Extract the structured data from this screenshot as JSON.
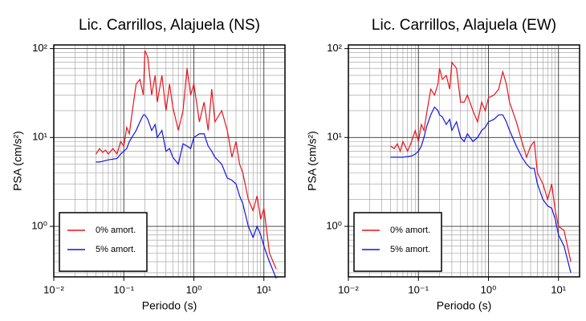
{
  "chart_data": [
    {
      "type": "line",
      "title": "Lic. Carrillos, Alajuela (NS)",
      "x_label": "Periodo (s)",
      "y_label": "PSA (cm/s²)",
      "x": [
        0.04,
        0.045,
        0.05,
        0.055,
        0.06,
        0.07,
        0.08,
        0.09,
        0.1,
        0.11,
        0.12,
        0.13,
        0.15,
        0.17,
        0.19,
        0.2,
        0.22,
        0.25,
        0.28,
        0.3,
        0.35,
        0.4,
        0.45,
        0.5,
        0.6,
        0.7,
        0.8,
        0.9,
        1.0,
        1.2,
        1.4,
        1.6,
        1.8,
        2.0,
        2.5,
        3.0,
        3.5,
        4.0,
        4.5,
        5,
        6,
        7,
        8,
        9,
        10,
        12,
        15
      ],
      "series": [
        {
          "name": "0% amort.",
          "color": "#e8141c",
          "values": [
            6.5,
            7.5,
            6.8,
            7.2,
            6.5,
            7.5,
            6.5,
            9,
            8,
            13,
            11,
            18,
            40,
            45,
            30,
            95,
            80,
            30,
            50,
            25,
            50,
            20,
            40,
            22,
            12,
            20,
            60,
            30,
            40,
            15,
            25,
            12,
            35,
            15,
            20,
            12,
            6,
            9,
            5,
            4,
            2,
            1.5,
            2.2,
            1.2,
            1.6,
            0.5,
            0.33
          ]
        },
        {
          "name": "5% amort.",
          "color": "#1414e0",
          "values": [
            5.3,
            5.3,
            5.4,
            5.5,
            5.6,
            5.7,
            5.8,
            6.5,
            7,
            7.5,
            9,
            10,
            12,
            15,
            18,
            18,
            16,
            12,
            14,
            10,
            12,
            7,
            7.5,
            6,
            5,
            8.5,
            8,
            7.5,
            10,
            11,
            11,
            8,
            7,
            6,
            5,
            3.5,
            3.3,
            3,
            2.2,
            1.8,
            1,
            0.75,
            1.0,
            0.8,
            0.6,
            0.4,
            0.26
          ]
        }
      ],
      "xlim": [
        0.01,
        20
      ],
      "ylim": [
        0.27,
        110
      ],
      "log_x": true,
      "log_y": true,
      "grid": true,
      "minor_grid": true,
      "legend": "lower left",
      "xticks": [
        {
          "value": 0.01,
          "label": "10⁻²"
        },
        {
          "value": 0.1,
          "label": "10⁻¹"
        },
        {
          "value": 1,
          "label": "10⁰"
        },
        {
          "value": 10,
          "label": "10¹"
        }
      ],
      "yticks": [
        {
          "value": 1,
          "label": "10⁰"
        },
        {
          "value": 10,
          "label": "10¹"
        },
        {
          "value": 100,
          "label": "10²"
        }
      ]
    },
    {
      "type": "line",
      "title": "Lic. Carrillos, Alajuela (EW)",
      "x_label": "Periodo (s)",
      "y_label": "PSA (cm/s²)",
      "x": [
        0.04,
        0.045,
        0.05,
        0.055,
        0.06,
        0.07,
        0.08,
        0.09,
        0.1,
        0.11,
        0.12,
        0.13,
        0.15,
        0.17,
        0.19,
        0.2,
        0.22,
        0.25,
        0.28,
        0.3,
        0.35,
        0.4,
        0.45,
        0.5,
        0.6,
        0.7,
        0.8,
        0.9,
        1.0,
        1.2,
        1.4,
        1.6,
        1.8,
        2.0,
        2.5,
        3.0,
        3.5,
        4.0,
        4.5,
        5,
        6,
        7,
        8,
        9,
        10,
        12,
        15
      ],
      "series": [
        {
          "name": "0% amort.",
          "color": "#e8141c",
          "values": [
            8,
            7.5,
            8.5,
            7,
            9,
            7,
            9,
            12,
            9,
            14,
            12,
            18,
            35,
            30,
            40,
            60,
            45,
            50,
            35,
            70,
            60,
            25,
            25,
            30,
            20,
            15,
            25,
            20,
            28,
            30,
            35,
            55,
            40,
            25,
            15,
            9,
            6,
            8,
            9,
            4,
            3,
            2,
            3,
            1.5,
            1.0,
            0.9,
            0.4
          ]
        },
        {
          "name": "5% amort.",
          "color": "#1414e0",
          "values": [
            6,
            6,
            6,
            6,
            6,
            6.1,
            6.2,
            6.5,
            7,
            8,
            10,
            13,
            18,
            22,
            20,
            18,
            17,
            14,
            16,
            12,
            15,
            10,
            9,
            11,
            9,
            10,
            12,
            13,
            15,
            16,
            18,
            18,
            15,
            12,
            8,
            6,
            5,
            4.5,
            4.5,
            3,
            2,
            1.7,
            1.6,
            1.2,
            0.8,
            0.6,
            0.3
          ]
        }
      ],
      "xlim": [
        0.01,
        20
      ],
      "ylim": [
        0.27,
        110
      ],
      "log_x": true,
      "log_y": true,
      "grid": true,
      "minor_grid": true,
      "legend": "lower left",
      "xticks": [
        {
          "value": 0.01,
          "label": "10⁻²"
        },
        {
          "value": 0.1,
          "label": "10⁻¹"
        },
        {
          "value": 1,
          "label": "10⁰"
        },
        {
          "value": 10,
          "label": "10¹"
        }
      ],
      "yticks": [
        {
          "value": 1,
          "label": "10⁰"
        },
        {
          "value": 10,
          "label": "10¹"
        },
        {
          "value": 100,
          "label": "10²"
        }
      ]
    }
  ]
}
